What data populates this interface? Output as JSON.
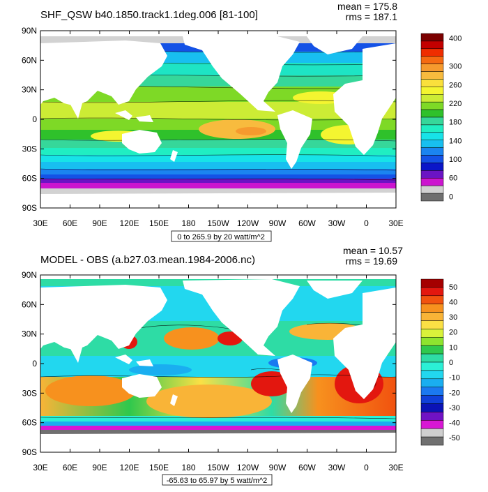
{
  "chart_data": [
    {
      "type": "heatmap",
      "title": "SHF_QSW b40.1850.track1.1deg.006 [81-100]",
      "stats": {
        "mean_label": "mean = 175.8",
        "rms_label": "rms = 187.1"
      },
      "contour_info": "0 to 265.9 by 20 watt/m^2",
      "x_ticks": [
        "30E",
        "60E",
        "90E",
        "120E",
        "150E",
        "180",
        "150W",
        "120W",
        "90W",
        "60W",
        "30W",
        "0",
        "30E"
      ],
      "y_ticks": [
        "90N",
        "60N",
        "30N",
        "0",
        "30S",
        "60S",
        "90S"
      ],
      "colorbar": {
        "colors": [
          "#7b0000",
          "#c30000",
          "#ef2d00",
          "#f56a12",
          "#f69a2e",
          "#f8bb3e",
          "#fae03c",
          "#f4f530",
          "#ccec35",
          "#7ed926",
          "#2fc12b",
          "#36d79a",
          "#20eec2",
          "#17e3e8",
          "#18bff0",
          "#1b84f0",
          "#1452e6",
          "#0b16c8",
          "#6b14c4",
          "#cc15cf",
          "#d2d2d2",
          "#6f6f6f"
        ],
        "labels": [
          "400",
          "",
          "",
          "300",
          "",
          "260",
          "",
          "220",
          "",
          "180",
          "",
          "140",
          "",
          "100",
          "",
          "60",
          "",
          "0"
        ]
      },
      "field_model": "insolation"
    },
    {
      "type": "heatmap",
      "title": "MODEL - OBS (a.b27.03.mean.1984-2006.nc)",
      "stats": {
        "mean_label": "mean = 10.57",
        "rms_label": "rms = 19.69"
      },
      "contour_info": "-65.63 to 65.97 by 5 watt/m^2",
      "x_ticks": [
        "30E",
        "60E",
        "90E",
        "120E",
        "150E",
        "180",
        "150W",
        "120W",
        "90W",
        "60W",
        "30W",
        "0",
        "30E"
      ],
      "y_ticks": [
        "90N",
        "60N",
        "30N",
        "0",
        "30S",
        "60S",
        "90S"
      ],
      "colorbar": {
        "colors": [
          "#a50000",
          "#e3170f",
          "#f1520f",
          "#f7911e",
          "#f9b437",
          "#fbe045",
          "#d9f23b",
          "#8ee42f",
          "#2fc84d",
          "#2edca5",
          "#2bf0d6",
          "#22d7ef",
          "#1aaef0",
          "#1b79f0",
          "#1040d9",
          "#0b13b6",
          "#7012c4",
          "#d817d4",
          "#cfcfcf",
          "#707070"
        ],
        "labels": [
          "50",
          "40",
          "30",
          "20",
          "10",
          "0",
          "-10",
          "-20",
          "-30",
          "-40",
          "-50"
        ]
      },
      "field_model": "difference"
    }
  ]
}
